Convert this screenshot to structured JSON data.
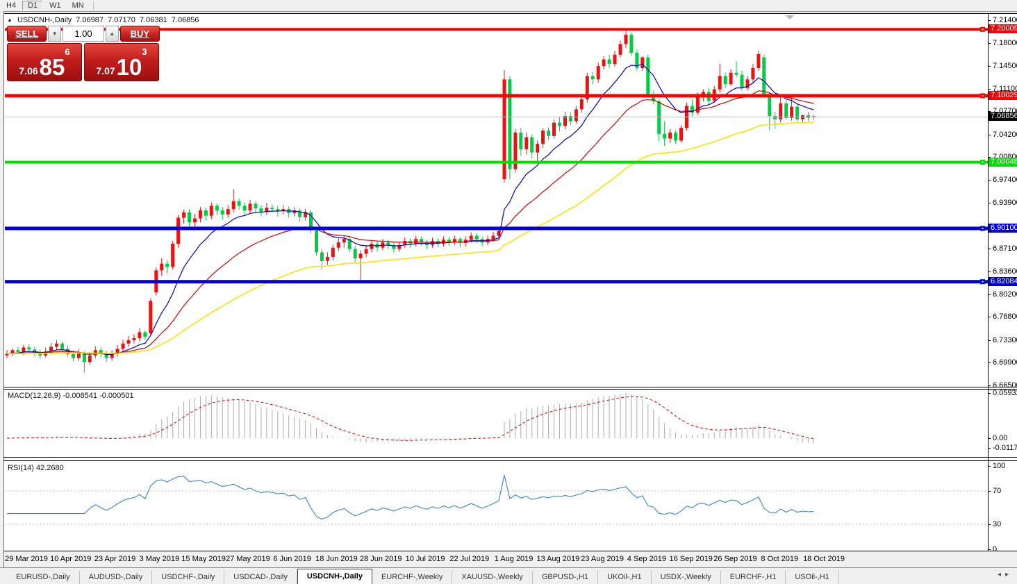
{
  "toolbar": {
    "timeframes": [
      {
        "label": "H4",
        "active": false
      },
      {
        "label": "D1",
        "active": true
      },
      {
        "label": "W1",
        "active": false
      },
      {
        "label": "MN",
        "active": false
      }
    ]
  },
  "chart": {
    "title": {
      "symbol": "USDCNH-,Daily",
      "open": "7.06987",
      "high": "7.07170",
      "low": "7.06381",
      "close": "7.06856"
    },
    "trade_panel": {
      "sell_label": "SELL",
      "buy_label": "BUY",
      "volume": "1.00",
      "sell": {
        "prefix": "7.06",
        "big": "85",
        "sup": "6"
      },
      "buy": {
        "prefix": "7.07",
        "big": "10",
        "sup": "3"
      }
    }
  },
  "chart_data": {
    "type": "candlestick",
    "symbol": "USDCNH",
    "timeframe": "Daily",
    "up_color": "#EE1111",
    "down_color": "#00CC44",
    "price_axis_ticks": [
      "7.21400",
      "7.18000",
      "7.14500",
      "7.11100",
      "7.07700",
      "7.04200",
      "7.00800",
      "6.97400",
      "6.93900",
      "6.87100",
      "6.83600",
      "6.80200",
      "6.76800",
      "6.73300",
      "6.69900",
      "6.66500"
    ],
    "levels": [
      {
        "value": 7.20009,
        "label": "7.20009",
        "color": "#FF0000",
        "text_color": "#FFFFFF",
        "thickness": 4
      },
      {
        "value": 7.10029,
        "label": "7.10029",
        "color": "#FF0000",
        "text_color": "#FFFFFF",
        "thickness": 5
      },
      {
        "value": 7.00048,
        "label": "7.00048",
        "color": "#00DD00",
        "text_color": "#FFFFFF",
        "thickness": 4
      },
      {
        "value": 6.901,
        "label": "6.90100",
        "color": "#0000D8",
        "text_color": "#FFFFFF",
        "thickness": 5
      },
      {
        "value": 6.82084,
        "label": "6.82084",
        "color": "#0000D8",
        "text_color": "#FFFFFF",
        "thickness": 5
      }
    ],
    "current_price": {
      "value": 7.06856,
      "label": "7.06856",
      "line_color": "#B8B8B8",
      "badge_bg": "#000000"
    },
    "moving_averages": [
      {
        "period": 10,
        "color": "#0000C8",
        "width": 1.2
      },
      {
        "period": 25,
        "color": "#D40000",
        "width": 1.2
      },
      {
        "period": 60,
        "color": "#FFE400",
        "width": 1.6
      }
    ],
    "indicators": [
      {
        "name": "MACD",
        "label": "MACD(12,26,9)",
        "values": "-0.008541 -0.000501",
        "scale": {
          "max": "0.059323",
          "zero": "0.00",
          "min": "-0.011773"
        },
        "histogram_color": "#ABABAB",
        "signal_color": "#E00000"
      },
      {
        "name": "RSI",
        "label": "RSI(14)",
        "value": "42.2680",
        "scale_labels": [
          100,
          70,
          30,
          0
        ],
        "dashed_levels": [
          70,
          30
        ],
        "line_color": "#3C82C8"
      }
    ],
    "x_labels": [
      "29 Mar 2019",
      "10 Apr 2019",
      "23 Apr 2019",
      "3 May 2019",
      "15 May 2019",
      "27 May 2019",
      "6 Jun 2019",
      "18 Jun 2019",
      "28 Jun 2019",
      "10 Jul 2019",
      "22 Jul 2019",
      "1 Aug 2019",
      "13 Aug 2019",
      "23 Aug 2019",
      "4 Sep 2019",
      "16 Sep 2019",
      "26 Sep 2019",
      "8 Oct 2019",
      "18 Oct 2019"
    ],
    "candles": [
      [
        6.71,
        6.718,
        6.706,
        6.7125
      ],
      [
        6.7125,
        6.721,
        6.709,
        6.718
      ],
      [
        6.718,
        6.723,
        6.712,
        6.715
      ],
      [
        6.715,
        6.726,
        6.711,
        6.722
      ],
      [
        6.722,
        6.727,
        6.715,
        6.719
      ],
      [
        6.719,
        6.723,
        6.709,
        6.714
      ],
      [
        6.714,
        6.719,
        6.705,
        6.71
      ],
      [
        6.71,
        6.722,
        6.707,
        6.716
      ],
      [
        6.716,
        6.729,
        6.712,
        6.723
      ],
      [
        6.723,
        6.733,
        6.718,
        6.728
      ],
      [
        6.728,
        6.731,
        6.714,
        6.72
      ],
      [
        6.72,
        6.725,
        6.708,
        6.712
      ],
      [
        6.712,
        6.718,
        6.701,
        6.706
      ],
      [
        6.706,
        6.719,
        6.702,
        6.713
      ],
      [
        6.713,
        6.716,
        6.684,
        6.7
      ],
      [
        6.7,
        6.715,
        6.696,
        6.71
      ],
      [
        6.71,
        6.724,
        6.706,
        6.718
      ],
      [
        6.718,
        6.722,
        6.707,
        6.712
      ],
      [
        6.712,
        6.717,
        6.7,
        6.706
      ],
      [
        6.706,
        6.718,
        6.702,
        6.712
      ],
      [
        6.712,
        6.726,
        6.708,
        6.72
      ],
      [
        6.72,
        6.734,
        6.716,
        6.728
      ],
      [
        6.728,
        6.739,
        6.723,
        6.733
      ],
      [
        6.733,
        6.742,
        6.728,
        6.736
      ],
      [
        6.736,
        6.751,
        6.731,
        6.745
      ],
      [
        6.745,
        6.748,
        6.733,
        6.738
      ],
      [
        6.743,
        6.796,
        6.74,
        6.792
      ],
      [
        6.805,
        6.842,
        6.8,
        6.838
      ],
      [
        6.838,
        6.856,
        6.83,
        6.848
      ],
      [
        6.848,
        6.853,
        6.834,
        6.843
      ],
      [
        6.843,
        6.882,
        6.839,
        6.878
      ],
      [
        6.878,
        6.921,
        6.872,
        6.917
      ],
      [
        6.917,
        6.929,
        6.908,
        6.925
      ],
      [
        6.925,
        6.93,
        6.902,
        6.91
      ],
      [
        6.91,
        6.923,
        6.901,
        6.916
      ],
      [
        6.916,
        6.933,
        6.91,
        6.928
      ],
      [
        6.928,
        6.932,
        6.913,
        6.92
      ],
      [
        6.92,
        6.94,
        6.915,
        6.935
      ],
      [
        6.935,
        6.939,
        6.921,
        6.928
      ],
      [
        6.928,
        6.933,
        6.914,
        6.922
      ],
      [
        6.922,
        6.936,
        6.917,
        6.93
      ],
      [
        6.93,
        6.96,
        6.925,
        6.942
      ],
      [
        6.942,
        6.946,
        6.929,
        6.935
      ],
      [
        6.935,
        6.94,
        6.921,
        6.928
      ],
      [
        6.928,
        6.944,
        6.923,
        6.938
      ],
      [
        6.938,
        6.942,
        6.925,
        6.931
      ],
      [
        6.931,
        6.936,
        6.919,
        6.926
      ],
      [
        6.926,
        6.939,
        6.921,
        6.932
      ],
      [
        6.932,
        6.937,
        6.924,
        6.93
      ],
      [
        6.93,
        6.935,
        6.919,
        6.927
      ],
      [
        6.927,
        6.936,
        6.922,
        6.93
      ],
      [
        6.93,
        6.934,
        6.917,
        6.924
      ],
      [
        6.924,
        6.933,
        6.919,
        6.928
      ],
      [
        6.928,
        6.931,
        6.911,
        6.918
      ],
      [
        6.918,
        6.93,
        6.913,
        6.925
      ],
      [
        6.925,
        6.928,
        6.893,
        6.898
      ],
      [
        6.898,
        6.901,
        6.86,
        6.865
      ],
      [
        6.865,
        6.87,
        6.839,
        6.852
      ],
      [
        6.852,
        6.865,
        6.846,
        6.858
      ],
      [
        6.858,
        6.877,
        6.853,
        6.872
      ],
      [
        6.872,
        6.886,
        6.867,
        6.88
      ],
      [
        6.88,
        6.89,
        6.872,
        6.885
      ],
      [
        6.885,
        6.889,
        6.865,
        6.87
      ],
      [
        6.87,
        6.875,
        6.85,
        6.856
      ],
      [
        6.856,
        6.868,
        6.823,
        6.863
      ],
      [
        6.863,
        6.876,
        6.858,
        6.87
      ],
      [
        6.87,
        6.883,
        6.865,
        6.878
      ],
      [
        6.878,
        6.882,
        6.866,
        6.872
      ],
      [
        6.872,
        6.885,
        6.868,
        6.88
      ],
      [
        6.88,
        6.884,
        6.87,
        6.876
      ],
      [
        6.876,
        6.88,
        6.864,
        6.87
      ],
      [
        6.87,
        6.881,
        6.866,
        6.876
      ],
      [
        6.876,
        6.887,
        6.872,
        6.882
      ],
      [
        6.882,
        6.886,
        6.872,
        6.878
      ],
      [
        6.878,
        6.89,
        6.874,
        6.885
      ],
      [
        6.885,
        6.889,
        6.875,
        6.88
      ],
      [
        6.88,
        6.884,
        6.87,
        6.876
      ],
      [
        6.876,
        6.887,
        6.872,
        6.882
      ],
      [
        6.882,
        6.886,
        6.873,
        6.878
      ],
      [
        6.878,
        6.889,
        6.874,
        6.884
      ],
      [
        6.884,
        6.888,
        6.875,
        6.88
      ],
      [
        6.88,
        6.89,
        6.876,
        6.885
      ],
      [
        6.885,
        6.888,
        6.873,
        6.879
      ],
      [
        6.879,
        6.889,
        6.874,
        6.884
      ],
      [
        6.884,
        6.895,
        6.88,
        6.89
      ],
      [
        6.89,
        6.894,
        6.879,
        6.885
      ],
      [
        6.885,
        6.889,
        6.874,
        6.88
      ],
      [
        6.88,
        6.89,
        6.876,
        6.885
      ],
      [
        6.885,
        6.896,
        6.881,
        6.89
      ],
      [
        6.89,
        6.903,
        6.886,
        6.897
      ],
      [
        6.975,
        7.139,
        6.97,
        7.125
      ],
      [
        7.125,
        7.13,
        6.975,
        6.99
      ],
      [
        6.99,
        7.05,
        6.985,
        7.045
      ],
      [
        7.045,
        7.052,
        7.01,
        7.02
      ],
      [
        7.02,
        7.045,
        7.012,
        7.038
      ],
      [
        7.038,
        7.042,
        7.006,
        7.015
      ],
      [
        7.015,
        7.033,
        6.998,
        7.028
      ],
      [
        7.028,
        7.052,
        7.022,
        7.048
      ],
      [
        7.048,
        7.053,
        7.034,
        7.04
      ],
      [
        7.04,
        7.065,
        7.036,
        7.06
      ],
      [
        7.06,
        7.068,
        7.047,
        7.055
      ],
      [
        7.055,
        7.076,
        7.05,
        7.07
      ],
      [
        7.07,
        7.075,
        7.056,
        7.062
      ],
      [
        7.062,
        7.085,
        7.058,
        7.08
      ],
      [
        7.08,
        7.1,
        7.075,
        7.095
      ],
      [
        7.095,
        7.135,
        7.09,
        7.13
      ],
      [
        7.13,
        7.136,
        7.118,
        7.125
      ],
      [
        7.125,
        7.15,
        7.12,
        7.145
      ],
      [
        7.145,
        7.16,
        7.14,
        7.155
      ],
      [
        7.155,
        7.162,
        7.142,
        7.148
      ],
      [
        7.148,
        7.168,
        7.144,
        7.162
      ],
      [
        7.162,
        7.183,
        7.158,
        7.178
      ],
      [
        7.178,
        7.1975,
        7.172,
        7.192
      ],
      [
        7.192,
        7.196,
        7.16,
        7.165
      ],
      [
        7.165,
        7.17,
        7.138,
        7.142
      ],
      [
        7.142,
        7.16,
        7.138,
        7.158
      ],
      [
        7.158,
        7.162,
        7.098,
        7.102
      ],
      [
        7.102,
        7.108,
        7.088,
        7.092
      ],
      [
        7.092,
        7.095,
        7.032,
        7.043
      ],
      [
        7.043,
        7.062,
        7.025,
        7.036
      ],
      [
        7.036,
        7.05,
        7.03,
        7.045
      ],
      [
        7.045,
        7.048,
        7.028,
        7.033
      ],
      [
        7.033,
        7.056,
        7.03,
        7.052
      ],
      [
        7.052,
        7.09,
        7.048,
        7.085
      ],
      [
        7.085,
        7.095,
        7.07,
        7.075
      ],
      [
        7.075,
        7.105,
        7.072,
        7.1
      ],
      [
        7.1,
        7.11,
        7.092,
        7.106
      ],
      [
        7.106,
        7.112,
        7.088,
        7.093
      ],
      [
        7.093,
        7.115,
        7.09,
        7.11
      ],
      [
        7.11,
        7.148,
        7.105,
        7.13
      ],
      [
        7.13,
        7.135,
        7.112,
        7.118
      ],
      [
        7.118,
        7.14,
        7.115,
        7.135
      ],
      [
        7.135,
        7.152,
        7.128,
        7.132
      ],
      [
        7.132,
        7.138,
        7.108,
        7.112
      ],
      [
        7.112,
        7.13,
        7.108,
        7.125
      ],
      [
        7.125,
        7.148,
        7.12,
        7.142
      ],
      [
        7.142,
        7.168,
        7.138,
        7.163
      ],
      [
        7.158,
        7.162,
        7.098,
        7.101
      ],
      [
        7.101,
        7.106,
        7.049,
        7.07
      ],
      [
        7.07,
        7.076,
        7.051,
        7.065
      ],
      [
        7.065,
        7.101,
        7.06,
        7.089
      ],
      [
        7.089,
        7.093,
        7.065,
        7.067
      ],
      [
        7.067,
        7.098,
        7.063,
        7.084
      ],
      [
        7.084,
        7.087,
        7.061,
        7.065
      ],
      [
        7.065,
        7.072,
        7.059,
        7.071
      ],
      [
        7.071,
        7.076,
        7.062,
        7.067
      ],
      [
        7.06987,
        7.0717,
        7.06381,
        7.06856
      ]
    ]
  },
  "bottom_tabs": {
    "tabs": [
      {
        "label": "EURUSD-,Daily",
        "active": false
      },
      {
        "label": "AUDUSD-,Daily",
        "active": false
      },
      {
        "label": "USDCHF-,Daily",
        "active": false
      },
      {
        "label": "USDCAD-,Daily",
        "active": false
      },
      {
        "label": "USDCNH-,Daily",
        "active": true
      },
      {
        "label": "EURCHF-,Weekly",
        "active": false
      },
      {
        "label": "XAUUSD-,Weekly",
        "active": false
      },
      {
        "label": "GBPUSD-,H1",
        "active": false
      },
      {
        "label": "UKOil-,H1",
        "active": false
      },
      {
        "label": "USDX-,Weekly",
        "active": false
      },
      {
        "label": "EURCHF-,H1",
        "active": false
      },
      {
        "label": "USOil-,H1",
        "active": false
      }
    ],
    "scroll_left": "◂",
    "scroll_right": "▸"
  }
}
